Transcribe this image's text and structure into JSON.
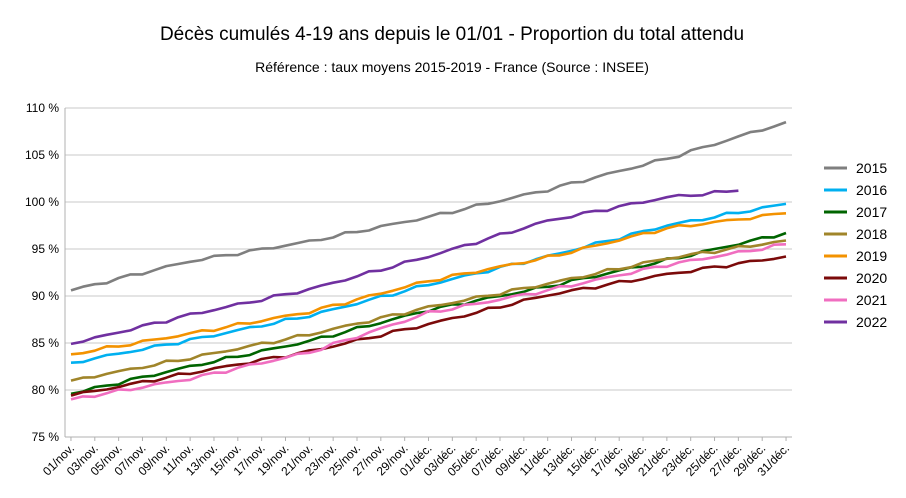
{
  "chart_data": {
    "type": "line",
    "title": "Décès cumulés 4-19 ans depuis le 01/01 - Proportion du total attendu",
    "subtitle": "Référence : taux moyens 2015-2019 - France  (Source : INSEE)",
    "xlabel": "",
    "ylabel": "",
    "ylim": [
      75,
      110
    ],
    "y_ticks": [
      75,
      80,
      85,
      90,
      95,
      100,
      105,
      110
    ],
    "y_tick_labels": [
      "75 %",
      "80 %",
      "85 %",
      "90 %",
      "95 %",
      "100 %",
      "105 %",
      "110 %"
    ],
    "x_count": 61,
    "x_tick_labels": [
      "01/nov.",
      "03/nov.",
      "05/nov.",
      "07/nov.",
      "09/nov.",
      "11/nov.",
      "13/nov.",
      "15/nov.",
      "17/nov.",
      "19/nov.",
      "21/nov.",
      "23/nov.",
      "25/nov.",
      "27/nov.",
      "29/nov.",
      "01/déc.",
      "03/déc.",
      "05/déc.",
      "07/déc.",
      "09/déc.",
      "11/déc.",
      "13/déc.",
      "15/déc.",
      "17/déc.",
      "19/déc.",
      "21/déc.",
      "23/déc.",
      "25/déc.",
      "27/déc.",
      "29/déc.",
      "31/déc."
    ],
    "grid": "horizontal",
    "legend_position": "right",
    "series": [
      {
        "name": "2015",
        "color": "#7f7f7f",
        "knots": [
          [
            0,
            90.6
          ],
          [
            10,
            93.7
          ],
          [
            20,
            95.8
          ],
          [
            30,
            98.4
          ],
          [
            40,
            101.3
          ],
          [
            50,
            104.6
          ],
          [
            60,
            108.5
          ]
        ]
      },
      {
        "name": "2016",
        "color": "#00b0f0",
        "knots": [
          [
            0,
            82.9
          ],
          [
            10,
            85.3
          ],
          [
            20,
            87.9
          ],
          [
            30,
            91.2
          ],
          [
            40,
            94.2
          ],
          [
            50,
            97.5
          ],
          [
            60,
            99.8
          ]
        ]
      },
      {
        "name": "2017",
        "color": "#006400",
        "knots": [
          [
            0,
            79.6
          ],
          [
            10,
            82.5
          ],
          [
            20,
            85.2
          ],
          [
            30,
            88.5
          ],
          [
            40,
            91.0
          ],
          [
            50,
            93.8
          ],
          [
            60,
            96.7
          ]
        ]
      },
      {
        "name": "2018",
        "color": "#a0852a",
        "knots": [
          [
            0,
            81.0
          ],
          [
            10,
            83.4
          ],
          [
            20,
            85.9
          ],
          [
            30,
            88.8
          ],
          [
            40,
            91.3
          ],
          [
            50,
            94.0
          ],
          [
            60,
            95.9
          ]
        ]
      },
      {
        "name": "2019",
        "color": "#f39200",
        "knots": [
          [
            0,
            83.8
          ],
          [
            10,
            86.0
          ],
          [
            20,
            88.3
          ],
          [
            30,
            91.6
          ],
          [
            40,
            94.1
          ],
          [
            50,
            97.2
          ],
          [
            60,
            98.8
          ]
        ]
      },
      {
        "name": "2020",
        "color": "#7b0a0a",
        "knots": [
          [
            0,
            79.4
          ],
          [
            10,
            81.8
          ],
          [
            20,
            84.1
          ],
          [
            30,
            87.0
          ],
          [
            40,
            90.1
          ],
          [
            50,
            92.3
          ],
          [
            60,
            94.2
          ]
        ]
      },
      {
        "name": "2021",
        "color": "#f06ec0",
        "knots": [
          [
            0,
            79.0
          ],
          [
            10,
            81.2
          ],
          [
            20,
            84.0
          ],
          [
            30,
            88.2
          ],
          [
            40,
            90.6
          ],
          [
            50,
            93.3
          ],
          [
            60,
            95.5
          ]
        ]
      },
      {
        "name": "2022",
        "color": "#7030a0",
        "knots": [
          [
            0,
            84.9
          ],
          [
            10,
            88.0
          ],
          [
            20,
            90.7
          ],
          [
            30,
            94.2
          ],
          [
            40,
            98.0
          ],
          [
            50,
            100.5
          ],
          [
            56,
            101.2
          ]
        ]
      }
    ]
  }
}
